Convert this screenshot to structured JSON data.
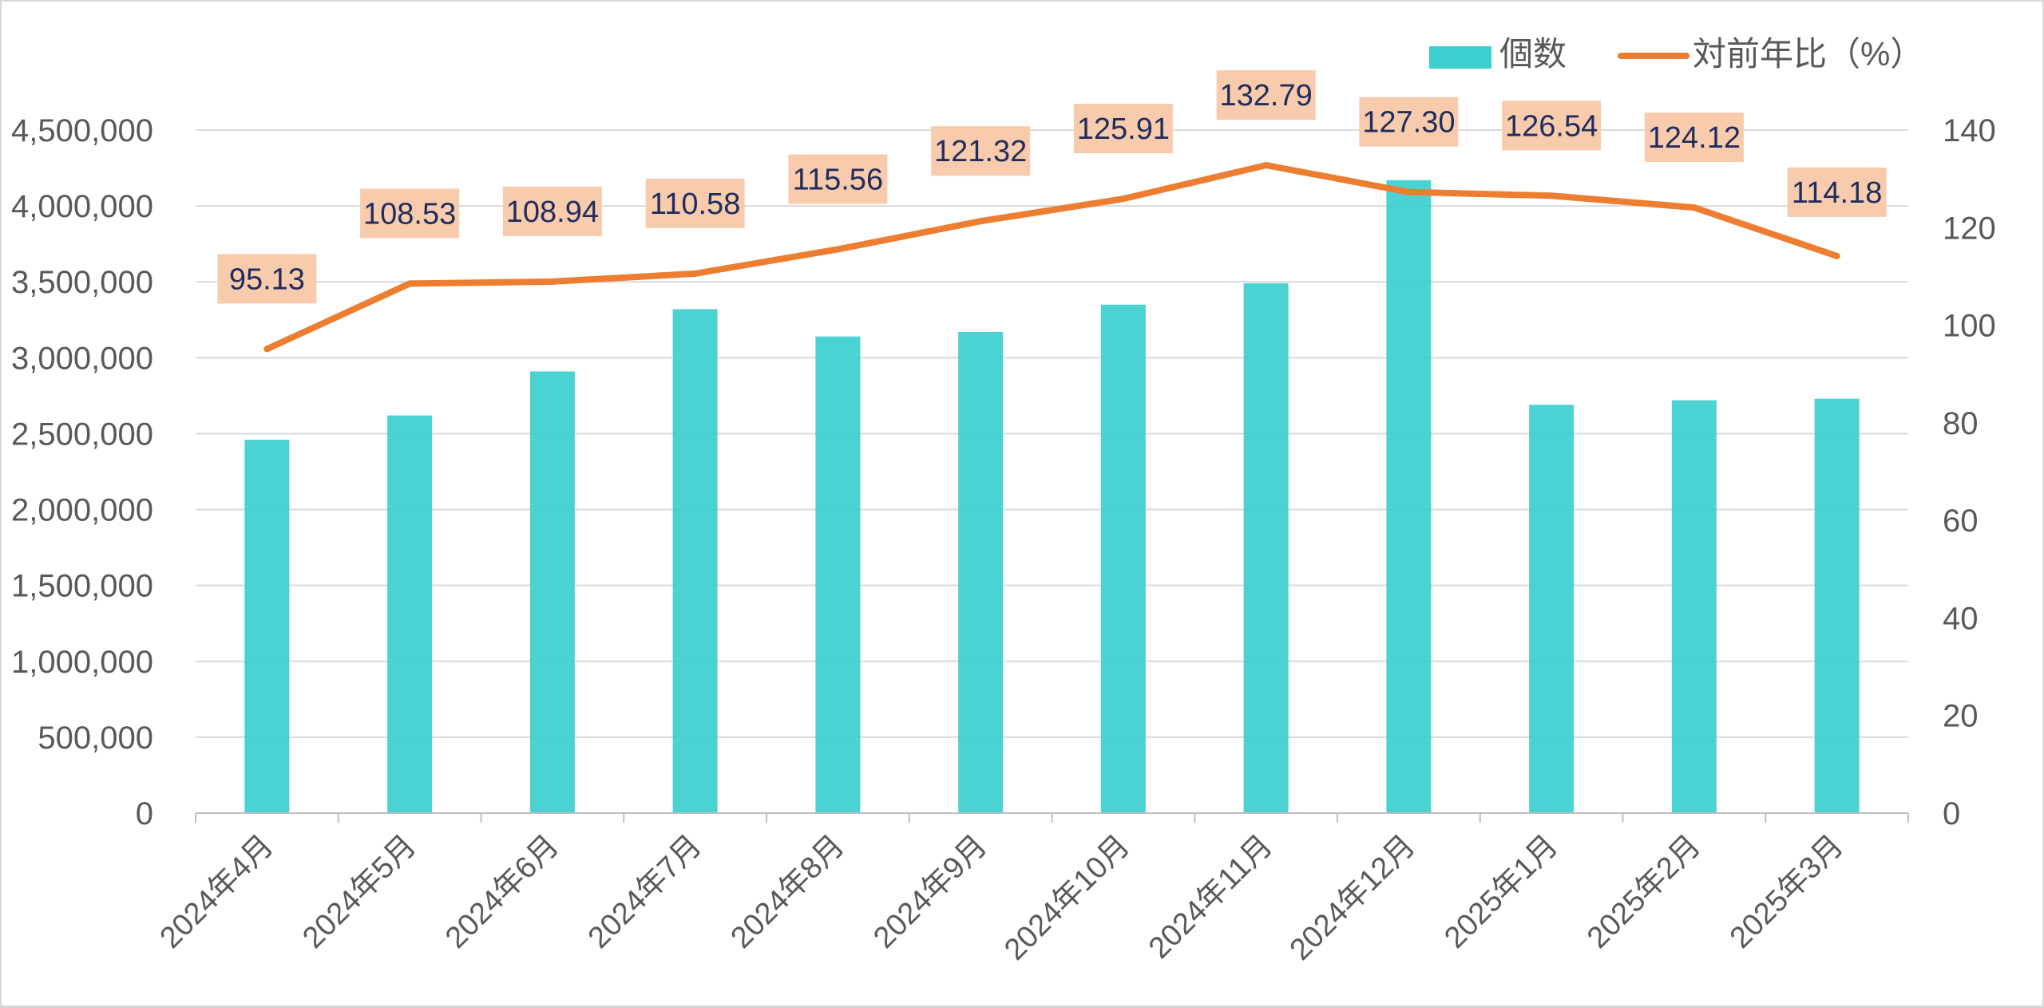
{
  "chart_data": {
    "type": "bar",
    "categories": [
      "2024年4月",
      "2024年5月",
      "2024年6月",
      "2024年7月",
      "2024年8月",
      "2024年9月",
      "2024年10月",
      "2024年11月",
      "2024年12月",
      "2025年1月",
      "2025年2月",
      "2025年3月"
    ],
    "series": [
      {
        "name": "個数",
        "type": "bar",
        "axis": "left",
        "color": "#3ccfcf",
        "values": [
          2460000,
          2620000,
          2910000,
          3320000,
          3140000,
          3170000,
          3350000,
          3490000,
          4170000,
          2690000,
          2720000,
          2730000
        ]
      },
      {
        "name": "対前年比（%）",
        "type": "line",
        "axis": "right",
        "color": "#ed7d31",
        "values": [
          95.13,
          108.53,
          108.94,
          110.58,
          115.56,
          121.32,
          125.91,
          132.79,
          127.3,
          126.54,
          124.12,
          114.18
        ],
        "labels": [
          "95.13",
          "108.53",
          "108.94",
          "110.58",
          "115.56",
          "121.32",
          "125.91",
          "132.79",
          "127.30",
          "126.54",
          "124.12",
          "114.18"
        ],
        "label_bg": "#f8cbad",
        "label_color": "#1f2d5c"
      }
    ],
    "y_left": {
      "min": 0,
      "max": 4500000,
      "ticks": [
        0,
        500000,
        1000000,
        1500000,
        2000000,
        2500000,
        3000000,
        3500000,
        4000000,
        4500000
      ],
      "tick_labels": [
        "0",
        "500,000",
        "1,000,000",
        "1,500,000",
        "2,000,000",
        "2,500,000",
        "3,000,000",
        "3,500,000",
        "4,000,000",
        "4,500,000"
      ]
    },
    "y_right": {
      "min": 0,
      "max": 140,
      "ticks": [
        0,
        20,
        40,
        60,
        80,
        100,
        120,
        140
      ],
      "tick_labels": [
        "0",
        "20",
        "40",
        "60",
        "80",
        "100",
        "120",
        "140"
      ]
    },
    "grid": true,
    "legend_position": "top-right",
    "gridline_color": "#d9d9d9",
    "axis_color": "#bfbfbf"
  }
}
